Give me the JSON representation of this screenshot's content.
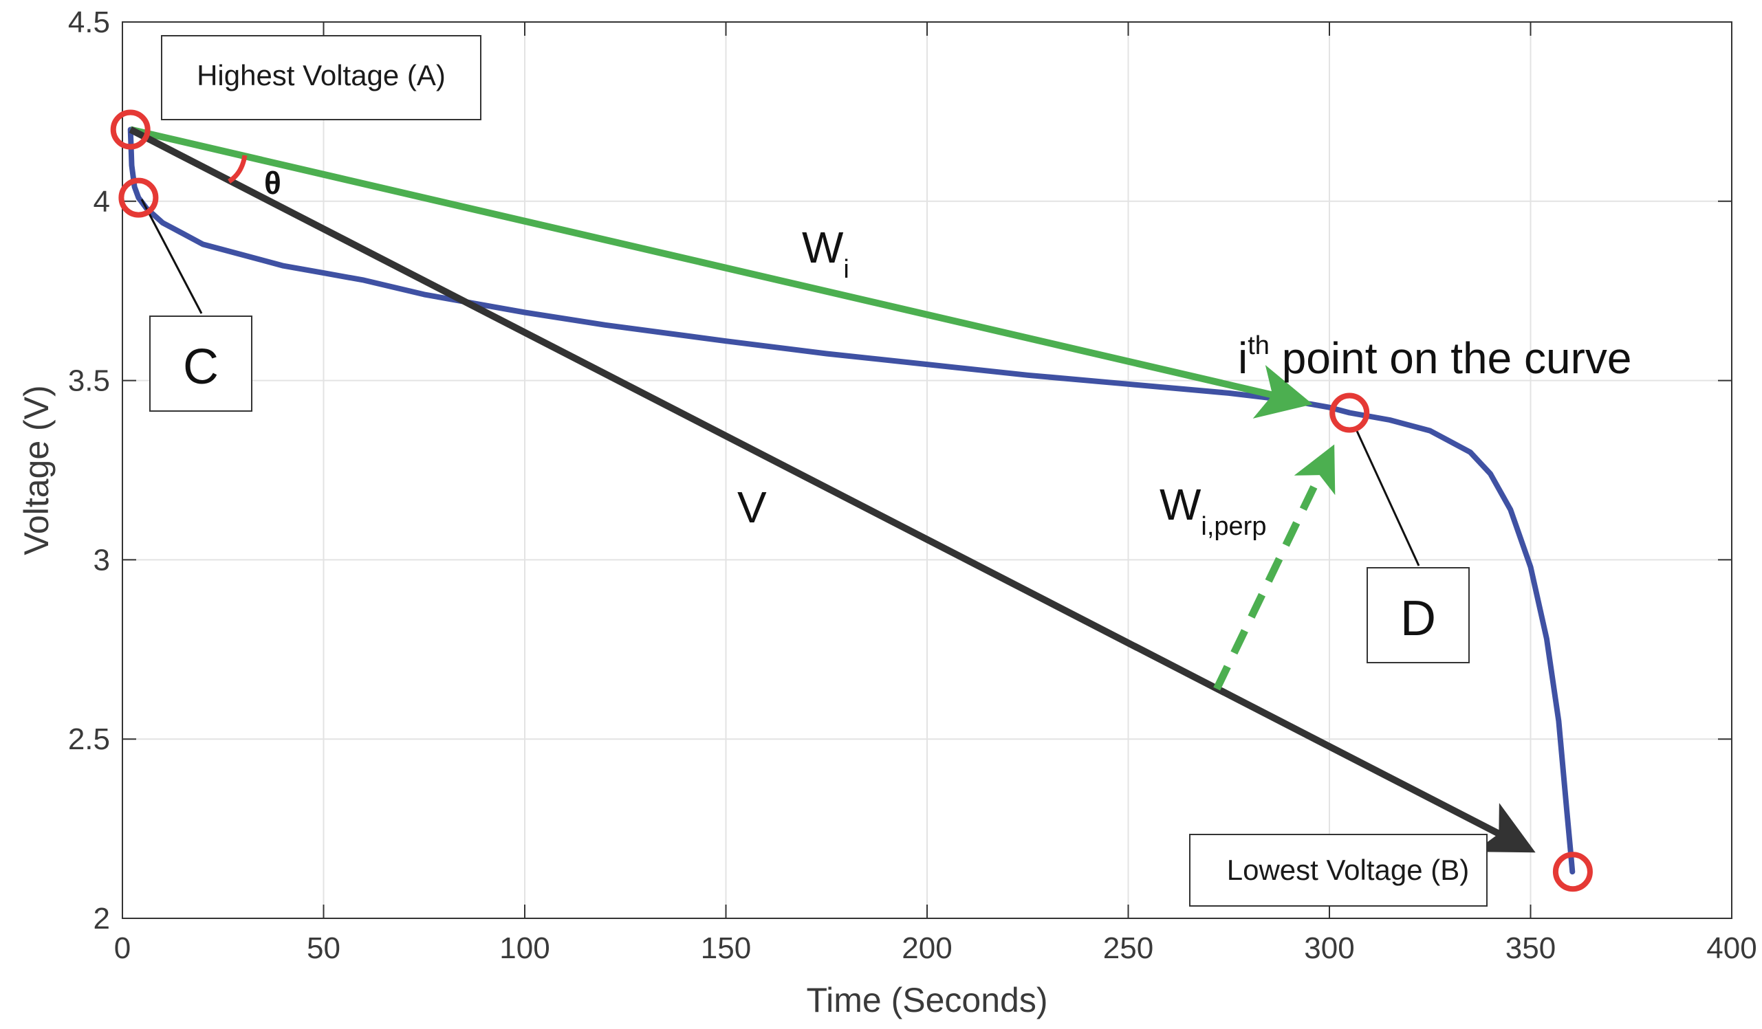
{
  "chart_data": {
    "type": "line",
    "xlabel": "Time (Seconds)",
    "ylabel": "Voltage (V)",
    "xlim": [
      0,
      400
    ],
    "ylim": [
      2,
      4.5
    ],
    "xticks": [
      0,
      50,
      100,
      150,
      200,
      250,
      300,
      350,
      400
    ],
    "yticks": [
      2,
      2.5,
      3,
      3.5,
      4,
      4.5
    ],
    "xtick_labels": [
      "0",
      "50",
      "100",
      "150",
      "200",
      "250",
      "300",
      "350",
      "400"
    ],
    "ytick_labels": [
      "2",
      "2.5",
      "3",
      "3.5",
      "4",
      "4.5"
    ],
    "grid": true,
    "series": [
      {
        "color": "#3f51a3",
        "x": [
          2,
          2.3,
          3,
          4,
          6,
          10,
          15,
          20,
          30,
          40,
          50,
          60,
          75,
          90,
          100,
          120,
          140,
          150,
          175,
          200,
          225,
          250,
          275,
          290,
          300,
          305,
          315,
          325,
          335,
          340,
          345,
          350,
          354,
          357,
          359,
          360,
          360.4
        ],
        "y": [
          4.2,
          4.1,
          4.04,
          4.01,
          3.98,
          3.94,
          3.91,
          3.88,
          3.85,
          3.82,
          3.8,
          3.78,
          3.74,
          3.71,
          3.69,
          3.655,
          3.625,
          3.61,
          3.575,
          3.545,
          3.515,
          3.49,
          3.465,
          3.445,
          3.425,
          3.41,
          3.39,
          3.36,
          3.3,
          3.24,
          3.14,
          2.98,
          2.78,
          2.55,
          2.3,
          2.18,
          2.13
        ]
      }
    ],
    "markers": [
      {
        "name": "A",
        "x": 2,
        "y": 4.2
      },
      {
        "name": "C",
        "x": 4,
        "y": 4.01
      },
      {
        "name": "ith point",
        "x": 305,
        "y": 3.41
      },
      {
        "name": "B",
        "x": 360.5,
        "y": 2.13
      }
    ],
    "vectors": [
      {
        "name": "W_i",
        "from": [
          2,
          4.2
        ],
        "to": [
          305,
          3.41
        ],
        "color": "#4caf50",
        "style": "solid"
      },
      {
        "name": "V",
        "from": [
          2,
          4.2
        ],
        "to": [
          360.5,
          2.13
        ],
        "color": "#333333",
        "style": "solid"
      },
      {
        "name": "W_i,perp",
        "from": [
          272,
          2.64
        ],
        "to": [
          305,
          3.41
        ],
        "color": "#4caf50",
        "style": "dashed"
      }
    ],
    "annotations": {
      "highest": "Highest Voltage (A)",
      "lowest": "Lowest Voltage (B)",
      "c": "C",
      "d": "D",
      "theta": "θ",
      "v": "V",
      "wi_main": "W",
      "wi_sub": "i",
      "wperp_main": "W",
      "wperp_sub": "i,perp",
      "ith_i": "i",
      "ith_sup": "th",
      "ith_rest": " point on the curve"
    },
    "colors": {
      "curve": "#3f51a3",
      "green": "#4caf50",
      "dark": "#333333",
      "marker": "#e53935"
    }
  }
}
